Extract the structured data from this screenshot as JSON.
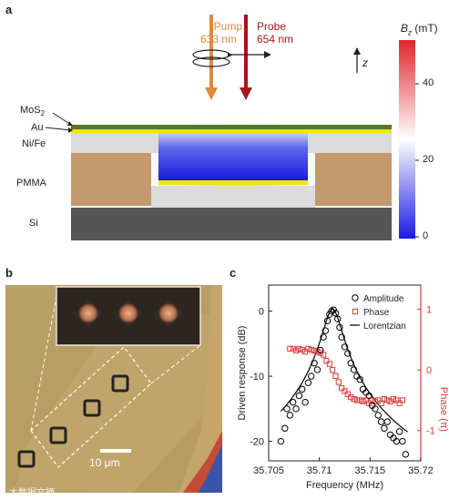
{
  "panel_a": {
    "letter": "a",
    "pump": {
      "line1": "Pump",
      "line2": "633 nm",
      "color": "#e08a3c"
    },
    "probe": {
      "line1": "Probe",
      "line2": "654 nm",
      "color": "#a5161c"
    },
    "axis_label": "z",
    "layers": [
      "MoS2",
      "Au",
      "Ni/Fe",
      "PMMA",
      "Si"
    ],
    "colorbar": {
      "title_main": "B",
      "title_sub": "z",
      "title_unit": " (mT)",
      "ticks": [
        "40",
        "20",
        "0"
      ],
      "colors": [
        "#e0262c",
        "#ffffff",
        "#1a1ae6"
      ]
    }
  },
  "panel_b": {
    "letter": "b",
    "scalebar_label": "10 μm",
    "background_color": "#b89d63"
  },
  "watermark": "大数据文摘",
  "chart_data": {
    "type": "scatter",
    "letter": "c",
    "xlabel": "Frequency (MHz)",
    "ylabel": "Driven response (dB)",
    "ylabel_right": "Phase (π)",
    "xlim": [
      35.705,
      35.72
    ],
    "ylim": [
      -23,
      4
    ],
    "ylim_right": [
      -1.5,
      1.4
    ],
    "xticks": [
      "35.705",
      "35.71",
      "35.715",
      "35.72"
    ],
    "yticks": [
      "0",
      "-10",
      "-20"
    ],
    "yticks_right": [
      "1",
      "0",
      "-1"
    ],
    "legend": [
      "Amplitude",
      "Phase",
      "Lorentzian"
    ],
    "series": [
      {
        "name": "Amplitude",
        "marker": "circle",
        "color": "#000000",
        "x": [
          35.7062,
          35.7066,
          35.7068,
          35.7071,
          35.7074,
          35.7077,
          35.708,
          35.7083,
          35.7086,
          35.7089,
          35.7092,
          35.7095,
          35.7098,
          35.7101,
          35.7104,
          35.7106,
          35.7108,
          35.711,
          35.7112,
          35.7114,
          35.7116,
          35.7118,
          35.712,
          35.7122,
          35.7125,
          35.7128,
          35.7131,
          35.7134,
          35.7137,
          35.714,
          35.7143,
          35.7146,
          35.7149,
          35.7152,
          35.7155,
          35.7158,
          35.7161,
          35.7164,
          35.7167,
          35.717,
          35.7173,
          35.7176,
          35.7179,
          35.7182,
          35.7185
        ],
        "y": [
          -20,
          -18,
          -15,
          -16,
          -14,
          -15,
          -13,
          -12,
          -14,
          -11,
          -10,
          -8,
          -9,
          -6,
          -4,
          -3,
          -1.5,
          -0.5,
          0,
          0.2,
          -0.3,
          -1.2,
          -2.5,
          -4,
          -5.5,
          -6.5,
          -8,
          -9,
          -10,
          -10.5,
          -12,
          -12.5,
          -13,
          -14.5,
          -15,
          -16,
          -17,
          -18,
          -17,
          -19,
          -19.5,
          -20,
          -18.5,
          -20,
          -22
        ]
      },
      {
        "name": "Phase",
        "marker": "square",
        "color": "#d93a3a",
        "x": [
          35.7071,
          35.7074,
          35.7077,
          35.708,
          35.7083,
          35.7086,
          35.7089,
          35.7092,
          35.7095,
          35.7098,
          35.7101,
          35.7104,
          35.7107,
          35.711,
          35.7113,
          35.7116,
          35.7119,
          35.7122,
          35.7125,
          35.7128,
          35.7131,
          35.7134,
          35.7137,
          35.714,
          35.7143,
          35.7146,
          35.7149,
          35.7152,
          35.7155,
          35.7158,
          35.7161,
          35.7164,
          35.7167,
          35.717,
          35.7173,
          35.7176,
          35.7179,
          35.7182
        ],
        "y": [
          0.35,
          0.35,
          0.32,
          0.35,
          0.33,
          0.3,
          0.35,
          0.33,
          0.32,
          0.3,
          0.28,
          0.25,
          0.15,
          0.1,
          0.0,
          -0.1,
          -0.2,
          -0.3,
          -0.35,
          -0.4,
          -0.45,
          -0.48,
          -0.5,
          -0.5,
          -0.52,
          -0.5,
          -0.55,
          -0.5,
          -0.52,
          -0.5,
          -0.55,
          -0.48,
          -0.5,
          -0.52,
          -0.48,
          -0.5,
          -0.55,
          -0.5
        ]
      },
      {
        "name": "Lorentzian",
        "type": "line",
        "color": "#000000",
        "center": 35.7113,
        "peak": 0.3,
        "gamma": 0.00085,
        "floor": -22
      }
    ]
  }
}
